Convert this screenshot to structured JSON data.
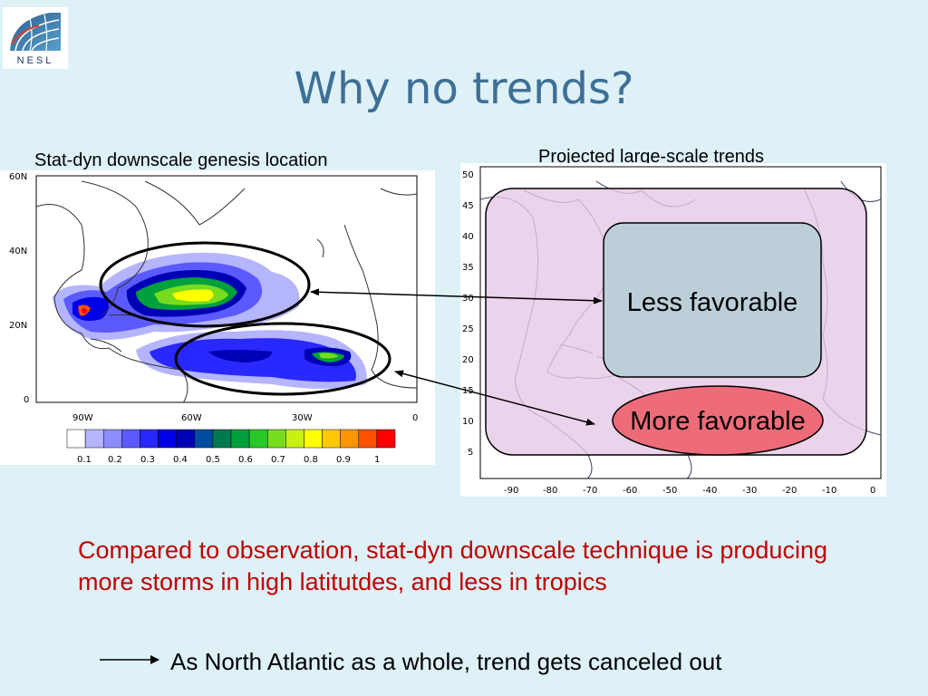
{
  "logo": {
    "text": "NESL",
    "icon": "globe-grid-logo"
  },
  "title": "Why no trends?",
  "left_panel": {
    "caption": "Stat-dyn downscale genesis location",
    "lat_labels": [
      "60N",
      "40N",
      "20N",
      "0"
    ],
    "lon_labels": [
      "90W",
      "60W",
      "30W",
      "0"
    ],
    "colorbar_labels": [
      "0.1",
      "0.2",
      "0.3",
      "0.4",
      "0.5",
      "0.6",
      "0.7",
      "0.8",
      "0.9",
      "1"
    ],
    "colorbar_colors": [
      "#ffffff",
      "#b4b4ff",
      "#8c8cff",
      "#5a5aff",
      "#2828ff",
      "#0000e6",
      "#0000b4",
      "#004ca0",
      "#007850",
      "#00a03c",
      "#28c828",
      "#78dc1e",
      "#c8f014",
      "#ffff00",
      "#ffc800",
      "#ff9600",
      "#ff5000",
      "#ff0000"
    ]
  },
  "right_panel": {
    "caption": "Projected large-scale trends",
    "lat_labels": [
      "50",
      "45",
      "40",
      "35",
      "30",
      "25",
      "20",
      "15",
      "10",
      "5"
    ],
    "lon_labels": [
      "-90",
      "-80",
      "-70",
      "-60",
      "-50",
      "-40",
      "-30",
      "-20",
      "-10",
      "0"
    ],
    "less_favorable_label": "Less favorable",
    "more_favorable_label": "More favorable",
    "colors": {
      "outer_box": "#e6c8e6",
      "less_box": "#bccfd9",
      "more_ellipse": "#ee6b7a"
    }
  },
  "body_text": "Compared to observation, stat-dyn downscale technique is producing more storms in high latitutdes, and less in tropics",
  "footer_text": "As North Atlantic as a whole, trend gets canceled out",
  "colors": {
    "background": "#ddf1f7",
    "title": "#3e6f96",
    "body_text": "#c00000"
  }
}
